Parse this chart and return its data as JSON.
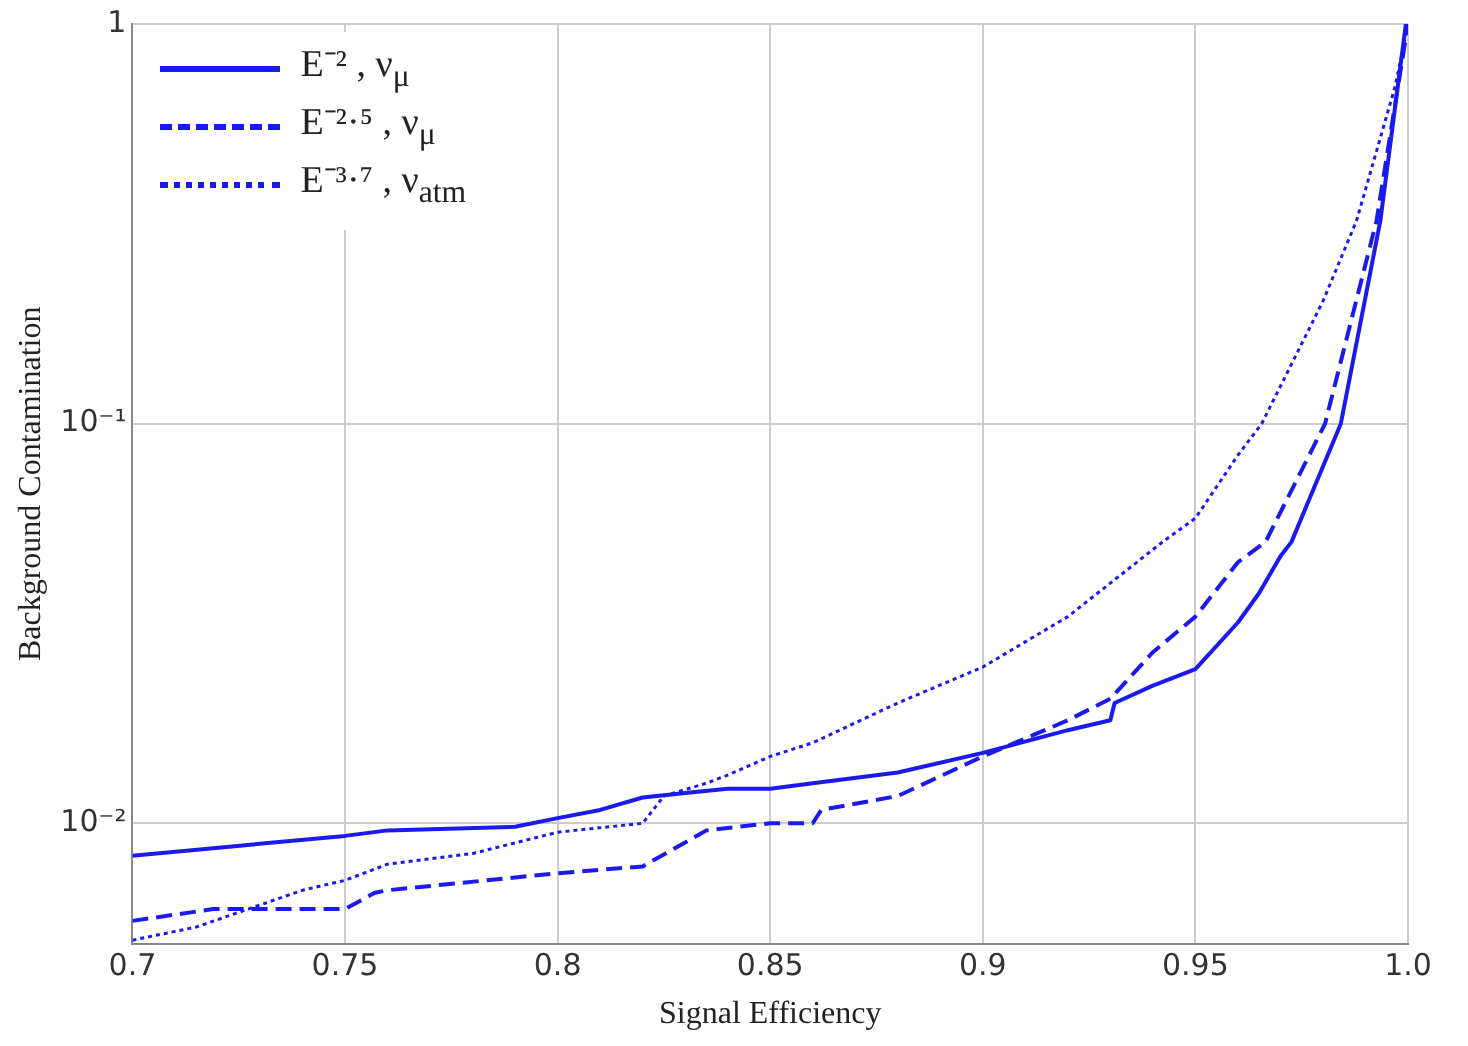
{
  "chart_data": {
    "type": "line",
    "xlabel": "Signal Efficiency",
    "ylabel": "Background Contamination",
    "log": "y",
    "grid": true,
    "legend": "top left",
    "marker": "none",
    "xlim": [
      0.7,
      1.0
    ],
    "xticks": [
      0.7,
      0.75,
      0.8,
      0.85,
      0.9,
      0.95,
      {
        "value": 1.0,
        "label": "1.0"
      }
    ],
    "ylim": [
      0.005,
      1
    ],
    "yticks": [
      {
        "value": 0.01,
        "label": "10⁻²"
      },
      {
        "value": 0.1,
        "label": "10⁻¹"
      },
      1
    ],
    "series": [
      {
        "name": "E⁻² , ν$_{μ}$",
        "color": "#1a1aee",
        "line_style": "solid",
        "x": [
          0.7,
          0.75,
          0.76,
          0.79,
          0.8,
          0.81,
          0.82,
          0.83,
          0.84,
          0.85,
          0.86,
          0.88,
          0.9,
          0.92,
          0.93,
          0.931,
          0.94,
          0.95,
          0.96,
          0.965,
          0.97,
          0.9726,
          0.9842,
          0.9935,
          0.9995
        ],
        "values": [
          0.0083,
          0.0093,
          0.0096,
          0.0098,
          0.0103,
          0.0108,
          0.0116,
          0.0119,
          0.0122,
          0.0122,
          0.0126,
          0.0134,
          0.015,
          0.0171,
          0.0181,
          0.02,
          0.0221,
          0.0243,
          0.0318,
          0.0377,
          0.0466,
          0.0506,
          0.1,
          0.322,
          1
        ]
      },
      {
        "name": "E⁻²·⁵ , ν$_{μ}$",
        "color": "#1a1aee",
        "line_style": "dashed",
        "x": [
          0.7,
          0.719,
          0.75,
          0.757,
          0.76,
          0.8,
          0.82,
          0.835,
          0.85,
          0.86,
          0.862,
          0.88,
          0.9,
          0.92,
          0.93,
          0.94,
          0.95,
          0.96,
          0.9665,
          0.9805,
          0.9926,
          1.0
        ],
        "values": [
          0.0057,
          0.0061,
          0.0061,
          0.0067,
          0.0068,
          0.0075,
          0.0078,
          0.0096,
          0.01,
          0.01,
          0.0108,
          0.0117,
          0.0147,
          0.0181,
          0.0205,
          0.0268,
          0.0329,
          0.045,
          0.0506,
          0.1,
          0.322,
          1
        ]
      },
      {
        "name": "E⁻³·⁷ , ν$_{atm}$",
        "color": "#1a1aee",
        "line_style": "dotted",
        "x": [
          0.7,
          0.715,
          0.74,
          0.75,
          0.76,
          0.78,
          0.8,
          0.82,
          0.825,
          0.835,
          0.84,
          0.85,
          0.86,
          0.88,
          0.9,
          0.92,
          0.9423,
          0.95,
          0.96,
          0.9656,
          0.98,
          0.9879,
          0.997,
          1.0
        ],
        "values": [
          0.0051,
          0.0055,
          0.0068,
          0.0072,
          0.0079,
          0.0084,
          0.0095,
          0.01,
          0.0117,
          0.0126,
          0.0132,
          0.0147,
          0.0159,
          0.02,
          0.0246,
          0.0329,
          0.0506,
          0.058,
          0.0834,
          0.1,
          0.2025,
          0.322,
          0.7,
          1
        ]
      }
    ]
  }
}
